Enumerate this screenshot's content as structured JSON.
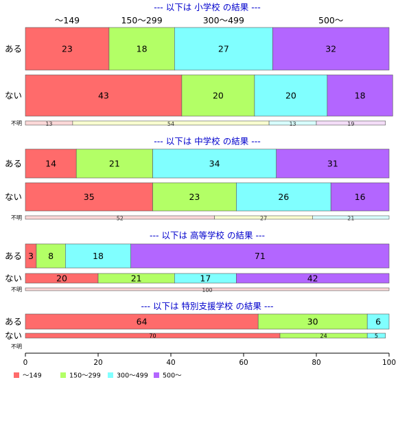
{
  "colors": {
    "c1": "#ff6b6b",
    "c2": "#b3ff66",
    "c3": "#80ffff",
    "c4": "#b366ff",
    "c1_light": "#fcd8d8",
    "c2_light": "#faffd0",
    "c3_light": "#d8ffff",
    "c4_light": "#f4ddf8",
    "title": "#0000cc"
  },
  "chart_data": {
    "type": "bar",
    "orientation": "horizontal-stacked-percent",
    "x_axis": {
      "range": [
        0,
        100
      ],
      "ticks": [
        "0",
        "20",
        "40",
        "60",
        "80",
        "100"
      ]
    },
    "top_categories": [
      "〜149",
      "150〜299",
      "300〜499",
      "500〜"
    ],
    "legend": {
      "placement": "bottom-left",
      "items": [
        "〜149",
        "150〜299",
        "300〜499",
        "500〜"
      ]
    },
    "panels": [
      {
        "title": "--- 以下は 小学校 の結果 ---",
        "rows": [
          {
            "label": "ある",
            "size": "large",
            "values": [
              23,
              18,
              27,
              32
            ],
            "labels": [
              "23",
              "18",
              "27",
              "32"
            ]
          },
          {
            "label": "ない",
            "size": "large",
            "values": [
              43,
              20,
              20,
              18
            ],
            "labels": [
              "43",
              "20",
              "20",
              "18"
            ]
          },
          {
            "label": "不明",
            "size": "tiny",
            "values": [
              13,
              54,
              13,
              19
            ],
            "labels": [
              "13",
              "54",
              "13",
              "19"
            ]
          }
        ]
      },
      {
        "title": "--- 以下は 中学校 の結果 ---",
        "rows": [
          {
            "label": "ある",
            "size": "large",
            "values": [
              14,
              21,
              34,
              31
            ],
            "labels": [
              "14",
              "21",
              "34",
              "31"
            ]
          },
          {
            "label": "ない",
            "size": "large",
            "values": [
              35,
              23,
              26,
              16
            ],
            "labels": [
              "35",
              "23",
              "26",
              "16"
            ]
          },
          {
            "label": "不明",
            "size": "tiny",
            "values": [
              52,
              27,
              21,
              0
            ],
            "labels": [
              "52",
              "27",
              "21",
              ""
            ]
          }
        ]
      },
      {
        "title": "--- 以下は 高等学校 の結果 ---",
        "rows": [
          {
            "label": "ある",
            "size": "large",
            "values": [
              3,
              8,
              18,
              71
            ],
            "labels": [
              "3",
              "8",
              "18",
              "71"
            ]
          },
          {
            "label": "ない",
            "size": "medium",
            "values": [
              20,
              21,
              17,
              42
            ],
            "labels": [
              "20",
              "21",
              "17",
              "42"
            ]
          },
          {
            "label": "不明",
            "size": "tiny",
            "values": [
              100,
              0,
              0,
              0
            ],
            "labels": [
              "100",
              "",
              "",
              ""
            ]
          }
        ]
      },
      {
        "title": "--- 以下は 特別支援学校 の結果 ---",
        "rows": [
          {
            "label": "ある",
            "size": "medium",
            "values": [
              64,
              30,
              6,
              0
            ],
            "labels": [
              "64",
              "30",
              "6",
              ""
            ]
          },
          {
            "label": "ない",
            "size": "small",
            "values": [
              70,
              24,
              5,
              0
            ],
            "labels": [
              "70",
              "24",
              "5",
              ""
            ]
          },
          {
            "label": "不明",
            "size": "empty",
            "values": [
              0,
              0,
              0,
              0
            ],
            "labels": [
              "",
              "",
              "",
              ""
            ]
          }
        ]
      }
    ]
  }
}
